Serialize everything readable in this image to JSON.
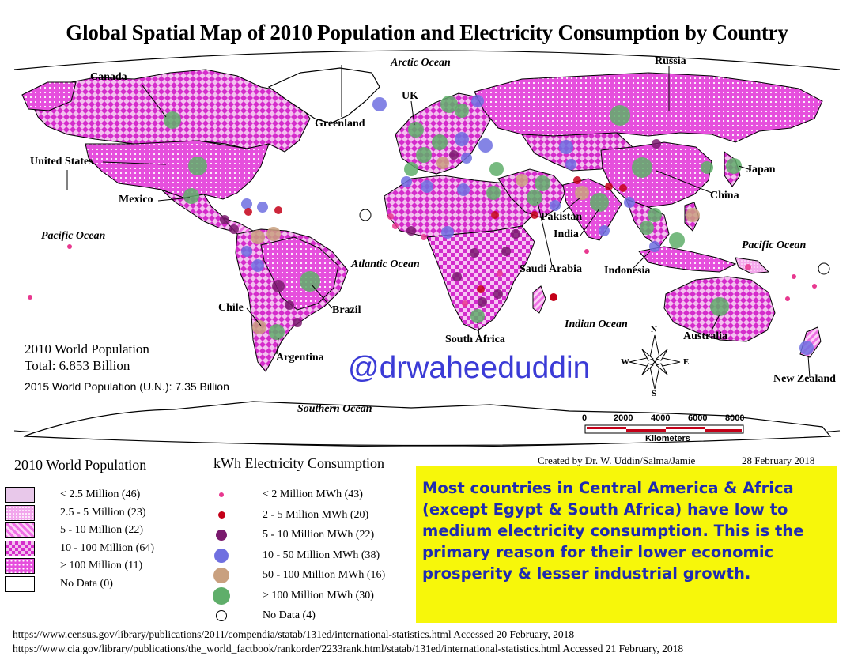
{
  "title": "Global Spatial Map of 2010 Population and Electricity Consumption by Country",
  "colors": {
    "pop_lt_2_5": "#e8c8ea",
    "pop_2_5_5": "#f2a6ec",
    "pop_5_10": "#f070e6",
    "pop_10_100": "#e23ad9",
    "pop_gt_100": "#e040d8",
    "elec_lt_2": "#e8388f",
    "elec_2_5": "#c40018",
    "elec_5_10": "#7a1a6e",
    "elec_10_50": "#6f6fe0",
    "elec_50_100": "#c9a07f",
    "elec_gt_100": "#5fae6a",
    "note_bg": "#f7f70a",
    "note_text": "#1f2bb0",
    "handle": "#3b3bd6"
  },
  "countries": {
    "canada": "Canada",
    "united_states": "United States",
    "mexico": "Mexico",
    "greenland": "Greenland",
    "uk": "UK",
    "russia": "Russia",
    "japan": "Japan",
    "china": "China",
    "pakistan": "Pakistan",
    "india": "India",
    "saudi_arabia": "Saudi Arabia",
    "indonesia": "Indonesia",
    "brazil": "Brazil",
    "chile": "Chile",
    "argentina": "Argentina",
    "south_africa": "South Africa",
    "australia": "Australia",
    "new_zealand": "New Zealand"
  },
  "oceans": {
    "arctic": "Arctic Ocean",
    "pacific_left": "Pacific Ocean",
    "pacific_right": "Pacific Ocean",
    "atlantic": "Atlantic Ocean",
    "indian": "Indian Ocean",
    "southern": "Southern Ocean"
  },
  "population_stats": {
    "heading": "2010 World Population",
    "total": "Total: 6.853 Billion",
    "un_2015": "2015 World Population (U.N.): 7.35 Billion"
  },
  "watermark": "@drwaheeduddin",
  "compass": {
    "n": "N",
    "s": "S",
    "e": "E",
    "w": "W"
  },
  "scale_bar": {
    "ticks": [
      "0",
      "2000",
      "4000",
      "6000",
      "8000"
    ],
    "unit": "Kilometers"
  },
  "legend_population": {
    "title": "2010 World Population",
    "items": [
      {
        "label": "< 2.5 Million (46)",
        "color_key": "pop_lt_2_5"
      },
      {
        "label": "2.5 - 5 Million (23)",
        "color_key": "pop_2_5_5"
      },
      {
        "label": "5 - 10 Million (22)",
        "color_key": "pop_5_10"
      },
      {
        "label": "10 - 100 Million (64)",
        "color_key": "pop_10_100"
      },
      {
        "label": "> 100 Million (11)",
        "color_key": "pop_gt_100"
      },
      {
        "label": "No Data (0)",
        "color_key": "none"
      }
    ]
  },
  "legend_electricity": {
    "title": "kWh Electricity Consumption",
    "items": [
      {
        "label": "< 2 Million MWh (43)",
        "color_key": "elec_lt_2"
      },
      {
        "label": "2 - 5 Million MWh (20)",
        "color_key": "elec_2_5"
      },
      {
        "label": "5 - 10 Million MWh (22)",
        "color_key": "elec_5_10"
      },
      {
        "label": "10 - 50 Million MWh (38)",
        "color_key": "elec_10_50"
      },
      {
        "label": "50 - 100 Million MWh (16)",
        "color_key": "elec_50_100"
      },
      {
        "label": "> 100 Million MWh (30)",
        "color_key": "elec_gt_100"
      },
      {
        "label": "No Data (4)",
        "color_key": "none"
      }
    ]
  },
  "credit": {
    "author": "Created by Dr. W. Uddin/Salma/Jamie",
    "date": "28 February 2018"
  },
  "note": "Most countries in Central America & Africa (except Egypt & South Africa) have low to medium electricity consumption. This is the primary reason for their lower economic prosperity & lesser industrial growth.",
  "sources": [
    "https://www.census.gov/library/publications/2011/compendia/statab/131ed/international-statistics.html  Accessed 20 February, 2018",
    "https://www.cia.gov/library/publications/the_world_factbook/rankorder/2233rank.html/statab/131ed/international-statistics.html  Accessed 21 February, 2018"
  ]
}
